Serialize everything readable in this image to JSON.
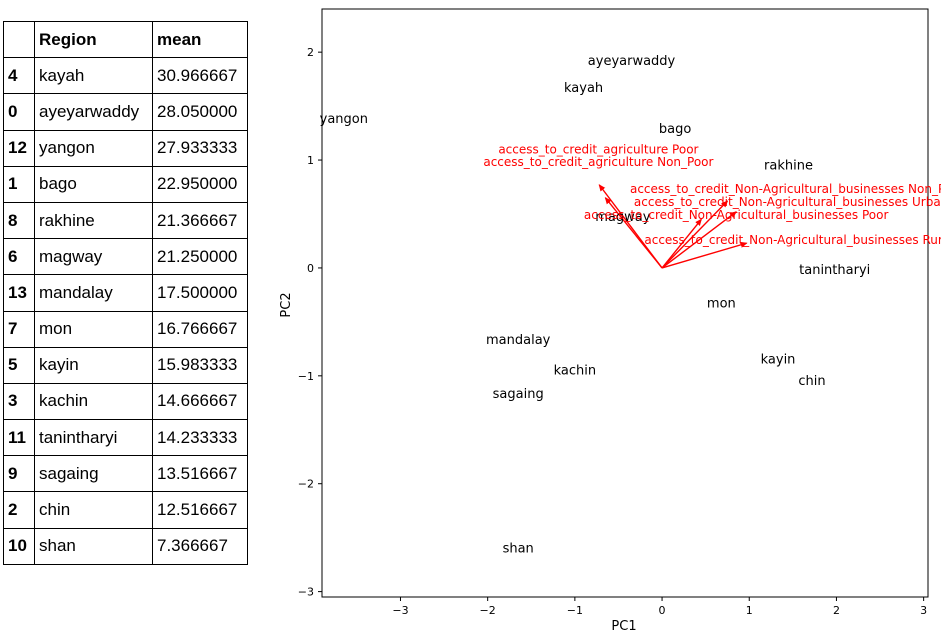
{
  "table": {
    "columns": [
      "",
      "Region",
      "mean"
    ],
    "rows": [
      {
        "index": "4",
        "region": "kayah",
        "mean": "30.966667"
      },
      {
        "index": "0",
        "region": "ayeyarwaddy",
        "mean": "28.050000"
      },
      {
        "index": "12",
        "region": "yangon",
        "mean": "27.933333"
      },
      {
        "index": "1",
        "region": "bago",
        "mean": "22.950000"
      },
      {
        "index": "8",
        "region": "rakhine",
        "mean": "21.366667"
      },
      {
        "index": "6",
        "region": "magway",
        "mean": "21.250000"
      },
      {
        "index": "13",
        "region": "mandalay",
        "mean": "17.500000"
      },
      {
        "index": "7",
        "region": "mon",
        "mean": "16.766667"
      },
      {
        "index": "5",
        "region": "kayin",
        "mean": "15.983333"
      },
      {
        "index": "3",
        "region": "kachin",
        "mean": "14.666667"
      },
      {
        "index": "11",
        "region": "tanintharyi",
        "mean": "14.233333"
      },
      {
        "index": "9",
        "region": "sagaing",
        "mean": "13.516667"
      },
      {
        "index": "2",
        "region": "chin",
        "mean": "12.516667"
      },
      {
        "index": "10",
        "region": "shan",
        "mean": "7.366667"
      }
    ]
  },
  "chart_data": {
    "type": "scatter",
    "title": "",
    "xlabel": "PC1",
    "ylabel": "PC2",
    "xlim": [
      -3.9,
      3.05
    ],
    "ylim": [
      -3.05,
      2.4
    ],
    "xticks": [
      -3,
      -2,
      -1,
      0,
      1,
      2,
      3
    ],
    "xtick_labels": [
      "−3",
      "−2",
      "−1",
      "0",
      "1",
      "2",
      "3"
    ],
    "yticks": [
      -3,
      -2,
      -1,
      0,
      1,
      2
    ],
    "ytick_labels": [
      "−3",
      "−2",
      "−1",
      "0",
      "1",
      "2"
    ],
    "grid": false,
    "points": [
      {
        "label": "ayeyarwaddy",
        "x": -0.35,
        "y": 1.92
      },
      {
        "label": "kayah",
        "x": -0.9,
        "y": 1.67
      },
      {
        "label": "yangon",
        "x": -3.65,
        "y": 1.38
      },
      {
        "label": "bago",
        "x": 0.15,
        "y": 1.29
      },
      {
        "label": "rakhine",
        "x": 1.45,
        "y": 0.95
      },
      {
        "label": "magway",
        "x": -0.45,
        "y": 0.47
      },
      {
        "label": "tanintharyi",
        "x": 1.98,
        "y": -0.02
      },
      {
        "label": "mon",
        "x": 0.68,
        "y": -0.33
      },
      {
        "label": "mandalay",
        "x": -1.65,
        "y": -0.67
      },
      {
        "label": "kachin",
        "x": -1.0,
        "y": -0.95
      },
      {
        "label": "kayin",
        "x": 1.33,
        "y": -0.85
      },
      {
        "label": "chin",
        "x": 1.72,
        "y": -1.05
      },
      {
        "label": "sagaing",
        "x": -1.65,
        "y": -1.17
      },
      {
        "label": "shan",
        "x": -1.65,
        "y": -2.6
      }
    ],
    "loadings": [
      {
        "label": "access_to_credit_agriculture Poor",
        "x": -0.72,
        "y": 0.77,
        "label_x": -0.73,
        "label_y": 1.1
      },
      {
        "label": "access_to_credit_agriculture Non_Poor",
        "x": -0.65,
        "y": 0.65,
        "label_x": -0.73,
        "label_y": 0.98
      },
      {
        "label": "access_to_credit_Non-Agricultural_businesses Non_Poor",
        "x": 0.75,
        "y": 0.62,
        "label_x": 1.55,
        "label_y": 0.73
      },
      {
        "label": "access_to_credit_Non-Agricultural_businesses Urban",
        "x": 0.85,
        "y": 0.52,
        "label_x": 1.48,
        "label_y": 0.61
      },
      {
        "label": "access_to_credit_Non-Agricultural_businesses Poor",
        "x": 0.45,
        "y": 0.45,
        "label_x": 0.85,
        "label_y": 0.49
      },
      {
        "label": "access_to_credit_Non-Agricultural_businesses Rural",
        "x": 0.97,
        "y": 0.23,
        "label_x": 1.57,
        "label_y": 0.26
      }
    ],
    "colors": {
      "points": "#000000",
      "loadings": "#ff0000"
    }
  }
}
